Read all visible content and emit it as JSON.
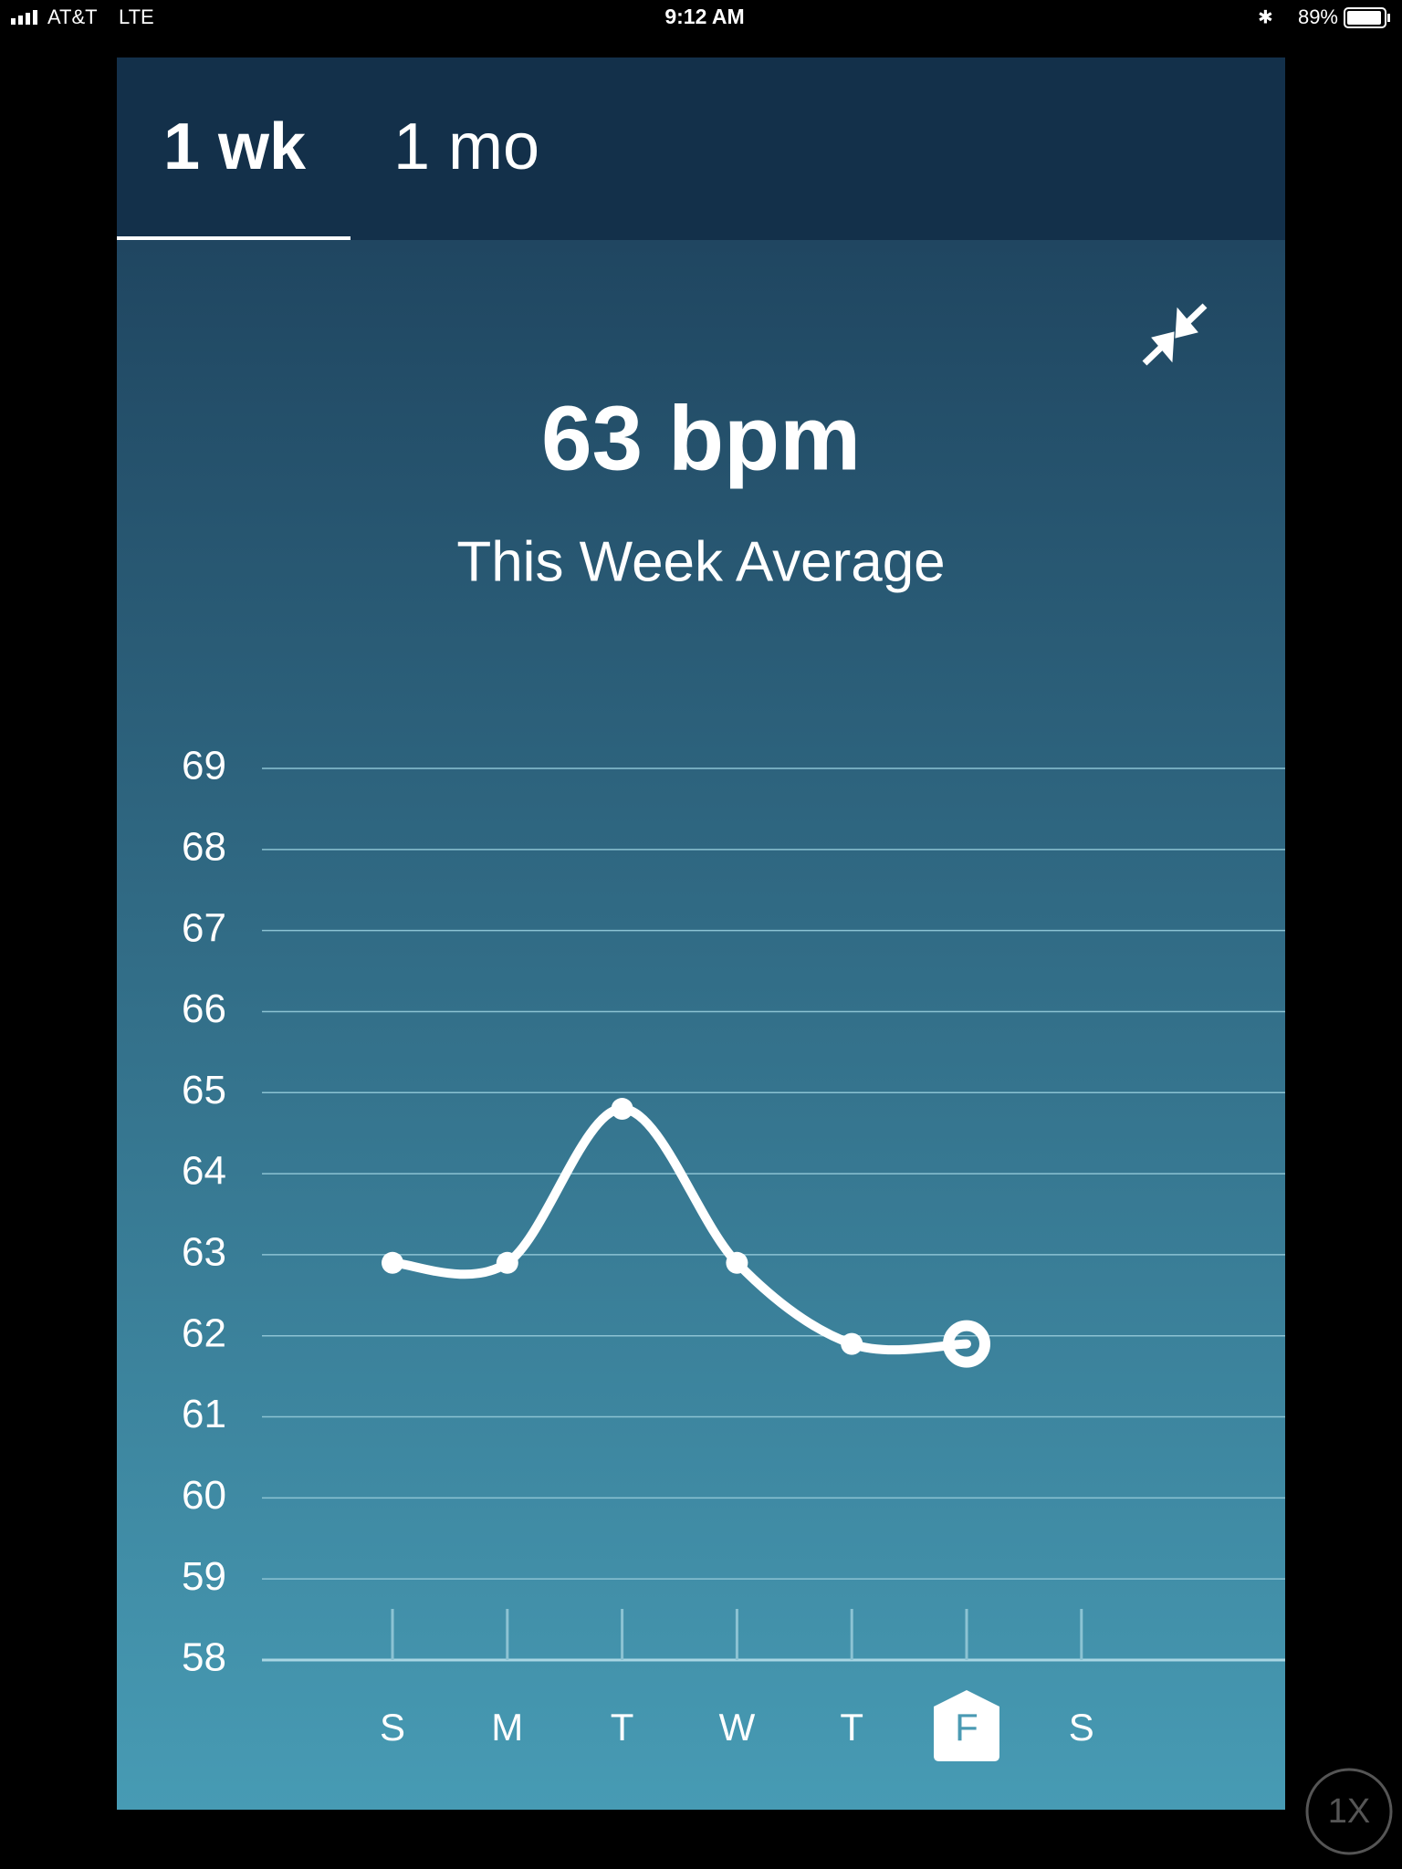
{
  "status_bar": {
    "carrier": "AT&T",
    "network": "LTE",
    "time": "9:12 AM",
    "battery": "89%"
  },
  "tabs": [
    "1 wk",
    "1 mo"
  ],
  "selected_tab": 0,
  "summary": {
    "value": "63 bpm",
    "label": "This Week Average"
  },
  "chart_data": {
    "type": "line",
    "categories": [
      "S",
      "M",
      "T",
      "W",
      "T",
      "F",
      "S"
    ],
    "series": [
      {
        "color": "#ffffff",
        "values": [
          62.9,
          62.9,
          64.8,
          62.9,
          61.9,
          61.9,
          null
        ]
      }
    ],
    "ylim": [
      58,
      69
    ],
    "yticks": [
      58,
      59,
      60,
      61,
      62,
      63,
      64,
      65,
      66,
      67,
      68,
      69
    ],
    "grid": true,
    "highlight_index": 5
  },
  "zoom_button": "1X"
}
